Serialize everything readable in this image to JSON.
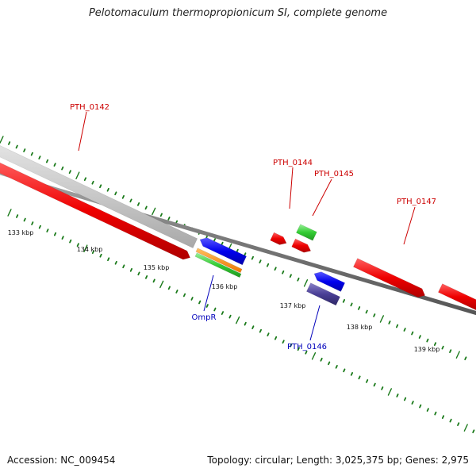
{
  "title": "Pelotomaculum thermopropionicum SI, complete genome",
  "footer": {
    "accession": "Accession: NC_009454",
    "summary": "Topology: circular; Length: 3,025,375 bp; Genes: 2,975"
  },
  "colors": {
    "forward_label": "#cc0000",
    "reverse_label": "#0000bb",
    "tick": "#1a7a1a",
    "backbone": "#777777"
  },
  "scale_labels": [
    "133 kbp",
    "134 kbp",
    "135 kbp",
    "136 kbp",
    "137 kbp",
    "138 kbp",
    "139 kbp"
  ],
  "features": [
    {
      "label": "PTH_0142",
      "strand": "forward"
    },
    {
      "label": "PTH_0144",
      "strand": "forward"
    },
    {
      "label": "PTH_0145",
      "strand": "forward"
    },
    {
      "label": "PTH_0147",
      "strand": "forward"
    },
    {
      "label": "OmpR",
      "strand": "reverse"
    },
    {
      "label": "PTH_0146",
      "strand": "reverse"
    }
  ]
}
